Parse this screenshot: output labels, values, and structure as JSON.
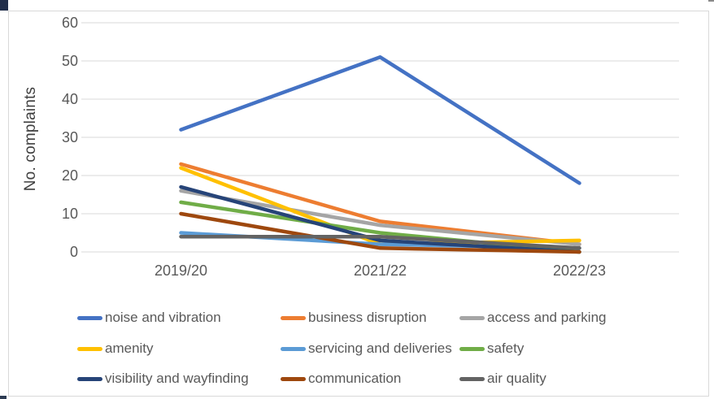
{
  "chart_data": {
    "type": "line",
    "title": "",
    "xlabel": "",
    "ylabel": "No. complaints",
    "categories": [
      "2019/20",
      "2021/22",
      "2022/23"
    ],
    "yticks": [
      0,
      10,
      20,
      30,
      40,
      50,
      60
    ],
    "ylim": [
      0,
      60
    ],
    "grid": "horizontal",
    "gridline_color": "#d9d9d9",
    "text_color": "#595959",
    "legend_position": "bottom",
    "series": [
      {
        "name": "noise and vibration",
        "color": "#4472C4",
        "values": [
          32,
          51,
          18
        ]
      },
      {
        "name": "business disruption",
        "color": "#ED7D31",
        "values": [
          23,
          8,
          2
        ]
      },
      {
        "name": "access and parking",
        "color": "#A5A5A5",
        "values": [
          16,
          7,
          2
        ]
      },
      {
        "name": "amenity",
        "color": "#FFC000",
        "values": [
          22,
          2,
          3
        ]
      },
      {
        "name": "servicing and deliveries",
        "color": "#5B9BD5",
        "values": [
          5,
          2,
          1
        ]
      },
      {
        "name": "safety",
        "color": "#70AD47",
        "values": [
          13,
          5,
          0
        ]
      },
      {
        "name": "visibility and wayfinding",
        "color": "#264478",
        "values": [
          17,
          3,
          0
        ]
      },
      {
        "name": "communication",
        "color": "#9E480E",
        "values": [
          10,
          1,
          0
        ]
      },
      {
        "name": "air quality",
        "color": "#636363",
        "values": [
          4,
          4,
          1
        ]
      }
    ]
  }
}
